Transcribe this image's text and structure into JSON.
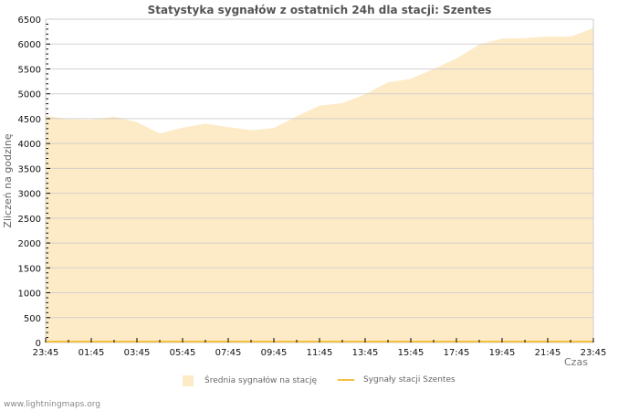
{
  "title": "Statystyka sygnałów z ostatnich 24h dla stacji: Szentes",
  "footer": "www.lightningmaps.org",
  "legend": {
    "area_label": "Średnia sygnałów na stację",
    "line_label": "Sygnały stacji Szentes"
  },
  "colors": {
    "area": "#fdebc8",
    "line": "#f5c040",
    "grid": "#c8c8c8"
  },
  "chart_data": {
    "type": "area",
    "title": "Statystyka sygnałów z ostatnich 24h dla stacji: Szentes",
    "xlabel": "Czas",
    "ylabel": "Zliczeń na godzinę",
    "ylim": [
      0,
      6500
    ],
    "yticks": [
      0,
      500,
      1000,
      1500,
      2000,
      2500,
      3000,
      3500,
      4000,
      4500,
      5000,
      5500,
      6000,
      6500
    ],
    "xticks": [
      "23:45",
      "01:45",
      "03:45",
      "05:45",
      "07:45",
      "09:45",
      "11:45",
      "13:45",
      "15:45",
      "17:45",
      "19:45",
      "21:45",
      "23:45"
    ],
    "grid": true,
    "legend_position": "bottom",
    "x": [
      "23:45",
      "00:45",
      "01:45",
      "02:45",
      "03:45",
      "04:45",
      "05:45",
      "06:45",
      "07:45",
      "08:45",
      "09:45",
      "10:45",
      "11:45",
      "12:45",
      "13:45",
      "14:45",
      "15:45",
      "16:45",
      "17:45",
      "18:45",
      "19:45",
      "20:45",
      "21:45",
      "22:45",
      "23:45"
    ],
    "series": [
      {
        "name": "Średnia sygnałów na stację",
        "values": [
          4560,
          4490,
          4480,
          4540,
          4430,
          4200,
          4320,
          4400,
          4330,
          4270,
          4310,
          4550,
          4760,
          4810,
          4990,
          5230,
          5300,
          5500,
          5710,
          5990,
          6110,
          6120,
          6150,
          6150,
          6320
        ]
      },
      {
        "name": "Sygnały stacji Szentes",
        "values": [
          0,
          0,
          0,
          0,
          0,
          0,
          0,
          0,
          0,
          0,
          0,
          0,
          0,
          0,
          0,
          0,
          0,
          0,
          0,
          0,
          0,
          0,
          0,
          0,
          0
        ]
      }
    ]
  }
}
